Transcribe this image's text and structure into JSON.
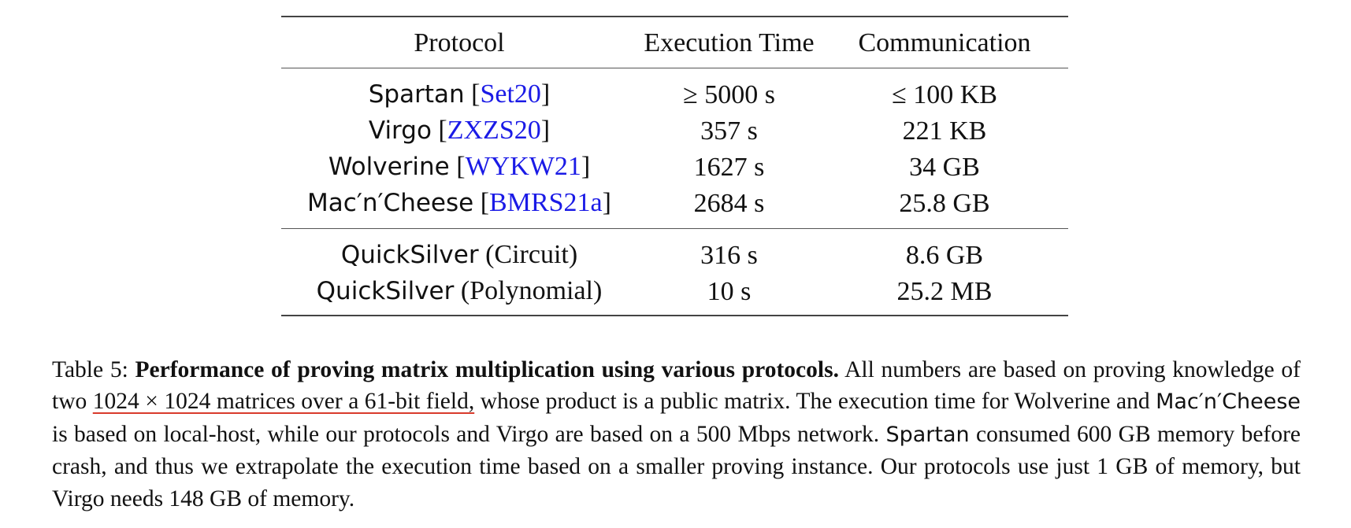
{
  "table": {
    "headers": [
      "Protocol",
      "Execution Time",
      "Communication"
    ],
    "group1": [
      {
        "protocol": "Spartan",
        "cite": "Set20",
        "time": "≥ 5000 s",
        "comm": "≤ 100 KB"
      },
      {
        "protocol": "Virgo",
        "cite": "ZXZS20",
        "time": "357 s",
        "comm": "221 KB"
      },
      {
        "protocol": "Wolverine",
        "cite": "WYKW21",
        "time": "1627 s",
        "comm": "34 GB"
      },
      {
        "protocol": "Mac′n′Cheese",
        "cite": "BMRS21a",
        "time": "2684 s",
        "comm": "25.8 GB"
      }
    ],
    "group2": [
      {
        "protocol": "QuickSilver",
        "variant": "(Circuit)",
        "time": "316 s",
        "comm": "8.6 GB"
      },
      {
        "protocol": "QuickSilver",
        "variant": "(Polynomial)",
        "time": "10 s",
        "comm": "25.2 MB"
      }
    ]
  },
  "caption": {
    "label": "Table 5:",
    "bold_title": "Performance of proving matrix multiplication using various protocols.",
    "t1": "All numbers are based on proving knowledge of two",
    "underlined": "1024 × 1024 matrices over a 61-bit field,",
    "t2": "whose product is a public matrix. The execution time for",
    "wolverine": "Wolverine",
    "t3": "and",
    "macncheese": "Mac′n′Cheese",
    "t4": "is based on local-host, while our protocols and Virgo are based on a 500 Mbps network.",
    "spartan": "Spartan",
    "t5": "consumed 600 GB memory before crash, and thus we extrapolate the execution time based on a smaller proving instance. Our protocols use just 1 GB of memory, but Virgo needs 148 GB of memory."
  },
  "colors": {
    "citation": "#1a1ae6",
    "underline": "#d93a2b",
    "text": "#111111",
    "rule": "#444444"
  }
}
